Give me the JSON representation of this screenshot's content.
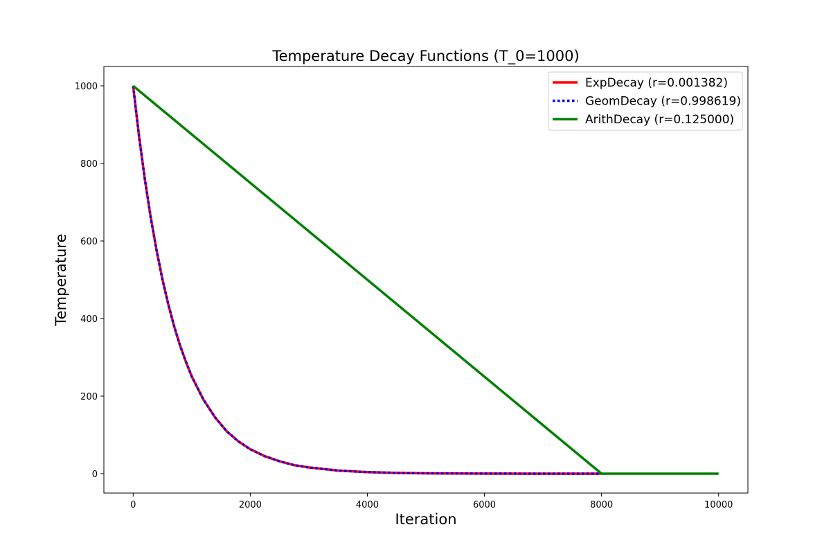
{
  "chart_data": {
    "type": "line",
    "title": "Temperature Decay Functions (T_0=1000)",
    "xlabel": "Iteration",
    "ylabel": "Temperature",
    "xlim": [
      -500,
      10500
    ],
    "ylim": [
      -50,
      1050
    ],
    "xticks": [
      0,
      2000,
      4000,
      6000,
      8000,
      10000
    ],
    "yticks": [
      0,
      200,
      400,
      600,
      800,
      1000
    ],
    "grid": false,
    "legend_position": "top-right",
    "series": [
      {
        "name": "ExpDecay (r=0.001382)",
        "color": "#ff0000",
        "style": "solid",
        "x": [
          0,
          100,
          200,
          300,
          400,
          500,
          600,
          700,
          800,
          900,
          1000,
          1200,
          1400,
          1600,
          1800,
          2000,
          2250,
          2500,
          2750,
          3000,
          3500,
          4000,
          4500,
          5000,
          5500,
          6000,
          7000,
          8000
        ],
        "y": [
          1000,
          871,
          759,
          661,
          576,
          501,
          437,
          380,
          331,
          289,
          251,
          191,
          145,
          109,
          83,
          63,
          45,
          32,
          22,
          16,
          8,
          4,
          2,
          1,
          0.5,
          0.2,
          0.06,
          0.02
        ]
      },
      {
        "name": "GeomDecay (r=0.998619)",
        "color": "#0000ff",
        "style": "dotted",
        "x": [
          0,
          100,
          200,
          300,
          400,
          500,
          600,
          700,
          800,
          900,
          1000,
          1200,
          1400,
          1600,
          1800,
          2000,
          2250,
          2500,
          2750,
          3000,
          3500,
          4000,
          4500,
          5000,
          5500,
          6000,
          7000,
          8000
        ],
        "y": [
          1000,
          871,
          759,
          661,
          576,
          501,
          437,
          380,
          331,
          289,
          251,
          191,
          145,
          109,
          83,
          63,
          45,
          32,
          22,
          16,
          8,
          4,
          2,
          1,
          0.5,
          0.2,
          0.06,
          0.02
        ]
      },
      {
        "name": "ArithDecay (r=0.125000)",
        "color": "#008000",
        "style": "solid",
        "x": [
          0,
          8000,
          10000
        ],
        "y": [
          1000,
          0,
          0
        ]
      }
    ]
  }
}
